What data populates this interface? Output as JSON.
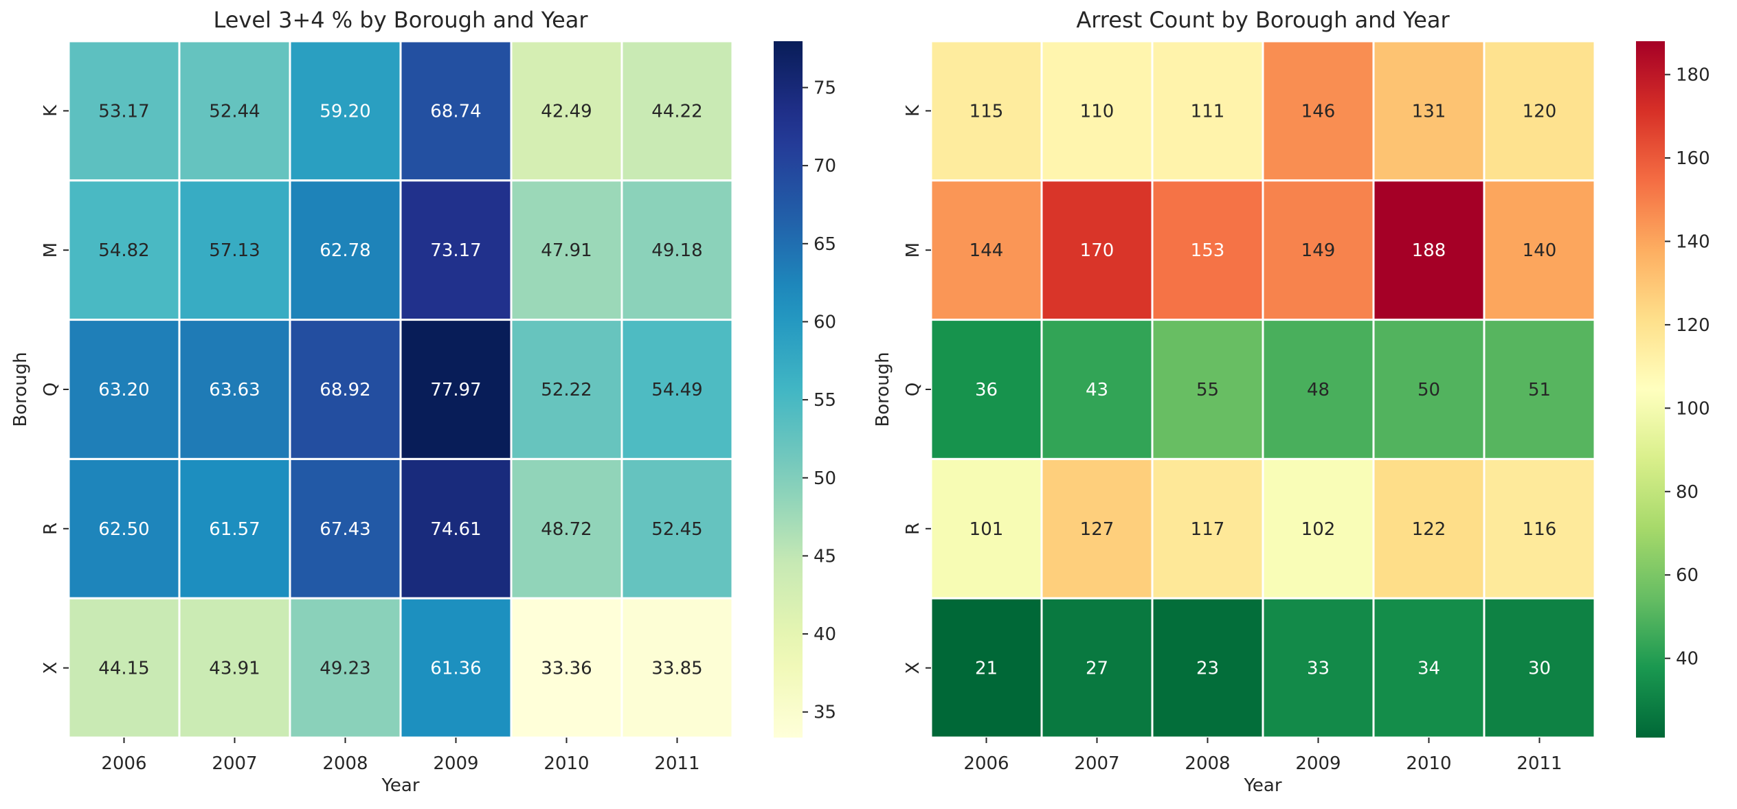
{
  "chart_data": [
    {
      "type": "heatmap",
      "title": "Level 3+4 % by Borough and Year",
      "xlabel": "Year",
      "ylabel": "Borough",
      "x_categories": [
        "2006",
        "2007",
        "2008",
        "2009",
        "2010",
        "2011"
      ],
      "y_categories": [
        "K",
        "M",
        "Q",
        "R",
        "X"
      ],
      "values": [
        [
          53.17,
          52.44,
          59.2,
          68.74,
          42.49,
          44.22
        ],
        [
          54.82,
          57.13,
          62.78,
          73.17,
          47.91,
          49.18
        ],
        [
          63.2,
          63.63,
          68.92,
          77.97,
          52.22,
          54.49
        ],
        [
          62.5,
          61.57,
          67.43,
          74.61,
          48.72,
          52.45
        ],
        [
          44.15,
          43.91,
          49.23,
          61.36,
          33.36,
          33.85
        ]
      ],
      "value_format": "2dp",
      "colormap": "YlGnBu",
      "colorbar": {
        "vmin": 33.36,
        "vmax": 77.97,
        "ticks": [
          35,
          40,
          45,
          50,
          55,
          60,
          65,
          70,
          75
        ]
      }
    },
    {
      "type": "heatmap",
      "title": "Arrest Count by Borough and Year",
      "xlabel": "Year",
      "ylabel": "Borough",
      "x_categories": [
        "2006",
        "2007",
        "2008",
        "2009",
        "2010",
        "2011"
      ],
      "y_categories": [
        "K",
        "M",
        "Q",
        "R",
        "X"
      ],
      "values": [
        [
          115,
          110,
          111,
          146,
          131,
          120
        ],
        [
          144,
          170,
          153,
          149,
          188,
          140
        ],
        [
          36,
          43,
          55,
          48,
          50,
          51
        ],
        [
          101,
          127,
          117,
          102,
          122,
          116
        ],
        [
          21,
          27,
          23,
          33,
          34,
          30
        ]
      ],
      "value_format": "int",
      "colormap": "RdYlGn_r",
      "colorbar": {
        "vmin": 21,
        "vmax": 188,
        "ticks": [
          40,
          60,
          80,
          100,
          120,
          140,
          160,
          180
        ]
      }
    }
  ]
}
